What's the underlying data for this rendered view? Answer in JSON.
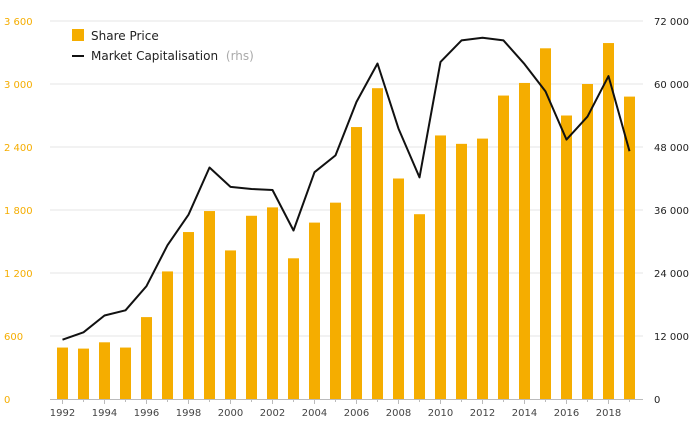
{
  "chart_data": {
    "type": "bar+line",
    "categories": [
      "1992",
      "1993",
      "1994",
      "1995",
      "1996",
      "1997",
      "1998",
      "1999",
      "2000",
      "2001",
      "2002",
      "2003",
      "2004",
      "2005",
      "2006",
      "2007",
      "2008",
      "2009",
      "2010",
      "2011",
      "2012",
      "2013",
      "2014",
      "2015",
      "2016",
      "2017",
      "2018",
      "2019"
    ],
    "x_tick_labels": [
      "1992",
      "1994",
      "1996",
      "1998",
      "2000",
      "2002",
      "2004",
      "2006",
      "2008",
      "2010",
      "2012",
      "2014",
      "2016",
      "2018"
    ],
    "series": [
      {
        "name": "Share Price",
        "type": "bar",
        "axis": "left",
        "color": "#f5ad00",
        "values": [
          490,
          480,
          540,
          490,
          780,
          1215,
          1590,
          1790,
          1415,
          1745,
          1825,
          1340,
          1680,
          1870,
          2590,
          2960,
          2100,
          1760,
          2510,
          2430,
          2480,
          2890,
          3010,
          3340,
          2700,
          3000,
          3390,
          2880
        ]
      },
      {
        "name": "Market Capitalisation",
        "type": "line",
        "axis": "right",
        "color": "#111111",
        "values": [
          11300,
          12700,
          15900,
          16900,
          21500,
          29300,
          35100,
          44100,
          40400,
          40000,
          39800,
          32100,
          43200,
          46400,
          56600,
          63900,
          51500,
          42200,
          64200,
          68300,
          68800,
          68300,
          63800,
          58600,
          49400,
          53800,
          61500,
          47200
        ]
      }
    ],
    "legend": {
      "share_price_label": "Share Price",
      "market_cap_label": "Market Capitalisation",
      "market_cap_suffix": "(rhs)",
      "placement": "top-left"
    },
    "y_left": {
      "ylim": [
        0,
        3600
      ],
      "ticks": [
        0,
        600,
        1200,
        1800,
        2400,
        3000,
        3600
      ],
      "tick_labels": [
        "0",
        "600",
        "1 200",
        "1 800",
        "2 400",
        "3 000",
        "3 600"
      ],
      "color": "#f5ad00"
    },
    "y_right": {
      "ylim": [
        0,
        72000
      ],
      "ticks": [
        0,
        12000,
        24000,
        36000,
        48000,
        60000,
        72000
      ],
      "tick_labels": [
        "0",
        "12 000",
        "24 000",
        "36 000",
        "48 000",
        "60 000",
        "72 000"
      ],
      "color": "#222222"
    },
    "grid": true,
    "title": "",
    "xlabel": "",
    "ylabel": ""
  }
}
